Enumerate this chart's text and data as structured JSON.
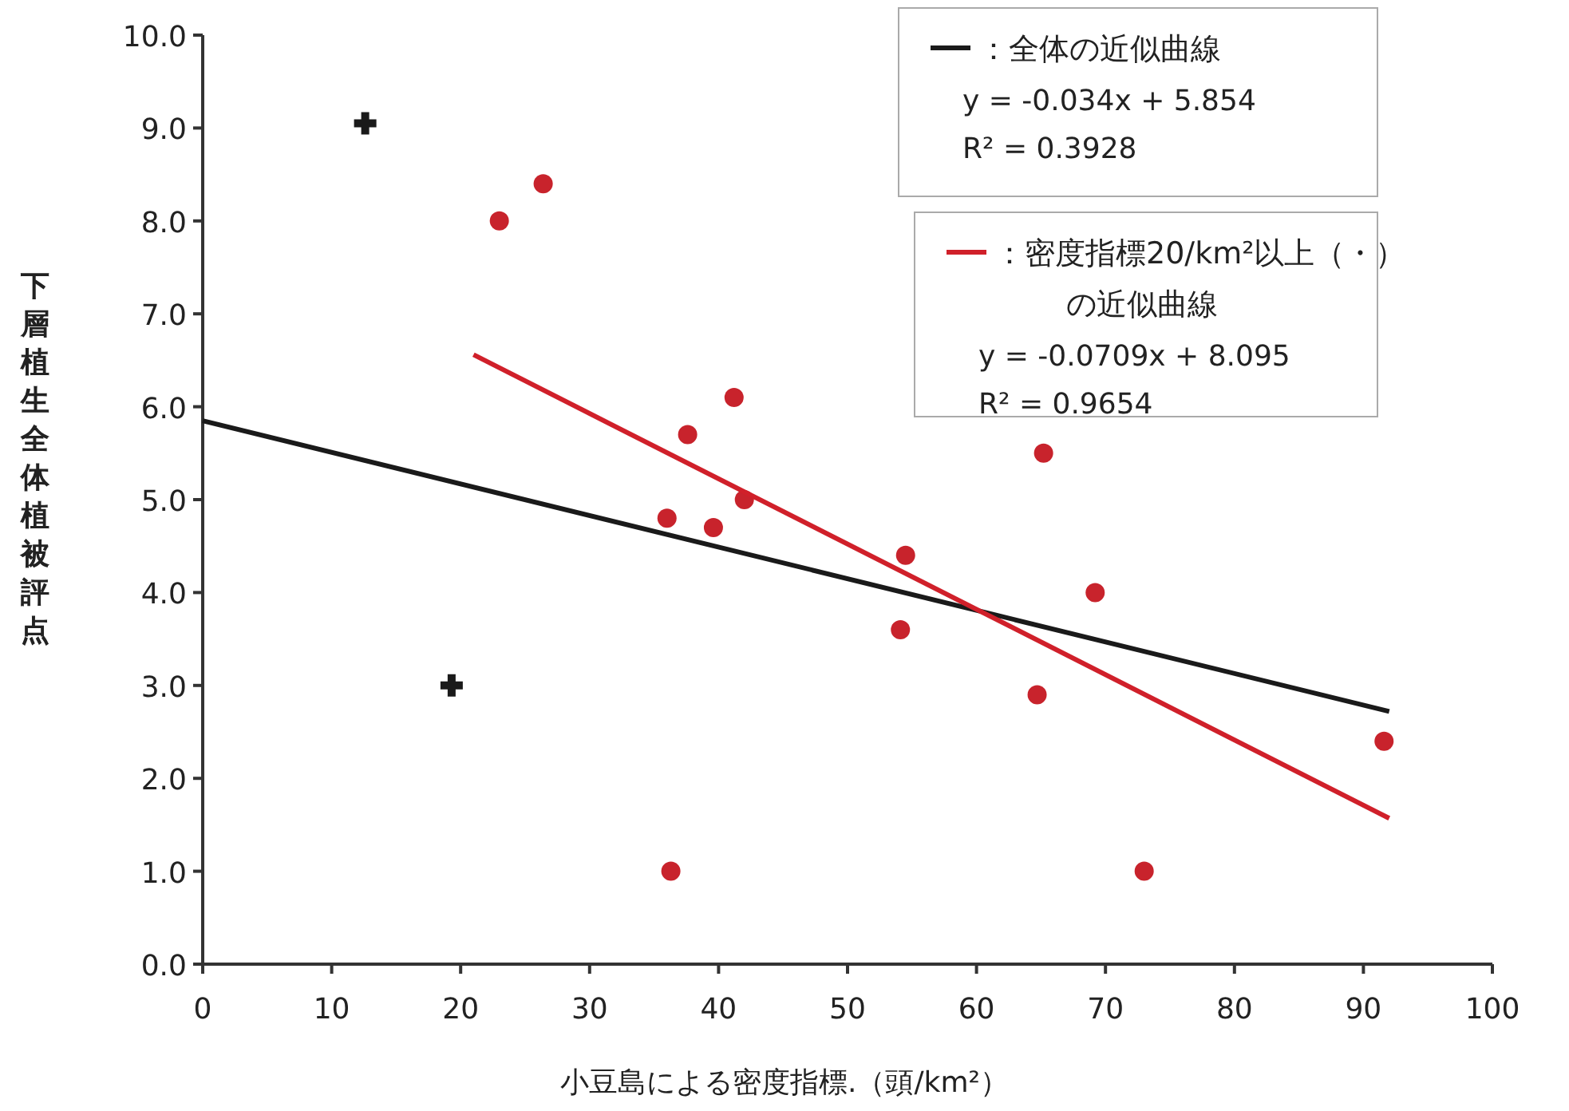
{
  "chart_data": {
    "type": "scatter",
    "xlabel": "小豆島による密度指標.（頭/km²）",
    "ylabel": "下層植生全体植被評点",
    "xlim": [
      0,
      100
    ],
    "xticks": [
      0,
      10,
      20,
      30,
      40,
      50,
      60,
      70,
      80,
      90,
      100
    ],
    "ylim": [
      0,
      10
    ],
    "yticks": [
      {
        "value": 0,
        "label": "0.0"
      },
      {
        "value": 1,
        "label": "1.0"
      },
      {
        "value": 2,
        "label": "2.0"
      },
      {
        "value": 3,
        "label": "3.0"
      },
      {
        "value": 4,
        "label": "4.0"
      },
      {
        "value": 5,
        "label": "5.0"
      },
      {
        "value": 6,
        "label": "6.0"
      },
      {
        "value": 7,
        "label": "7.0"
      },
      {
        "value": 8,
        "label": "8.0"
      },
      {
        "value": 9,
        "label": "9.0"
      },
      {
        "value": 10,
        "label": "10.0"
      }
    ],
    "grid": false,
    "legend": "top right",
    "series": [
      {
        "color": "#c8232c",
        "marker": "circle",
        "x": [
          23.0,
          26.4,
          36.0,
          37.6,
          39.6,
          41.2,
          42.0,
          36.3,
          54.5,
          54.1,
          65.2,
          64.7,
          69.2,
          73.0,
          91.6
        ],
        "values": [
          8.0,
          8.4,
          4.8,
          5.7,
          4.7,
          6.1,
          5.0,
          1.0,
          4.4,
          3.6,
          5.5,
          2.9,
          4.0,
          1.0,
          2.4
        ]
      },
      {
        "color": "#1a1a1a",
        "marker": "cross",
        "x": [
          12.6,
          19.3
        ],
        "values": [
          9.05,
          3.0
        ]
      },
      {
        "type": "line",
        "name": "：全体の近似曲線",
        "color": "#1a1a1a",
        "x": [
          0,
          92
        ],
        "values": [
          5.85,
          2.72
        ]
      },
      {
        "type": "line",
        "name": "：密度指標20/km²以上（・）の近似曲線",
        "color": "#d0202a",
        "x": [
          21,
          92
        ],
        "values": [
          6.56,
          1.57
        ]
      }
    ],
    "annotations": [
      "y = -0.034x + 5.854",
      "R² = 0.3928",
      "y = -0.0709x + 8.095",
      "R² = 0.9654"
    ]
  }
}
